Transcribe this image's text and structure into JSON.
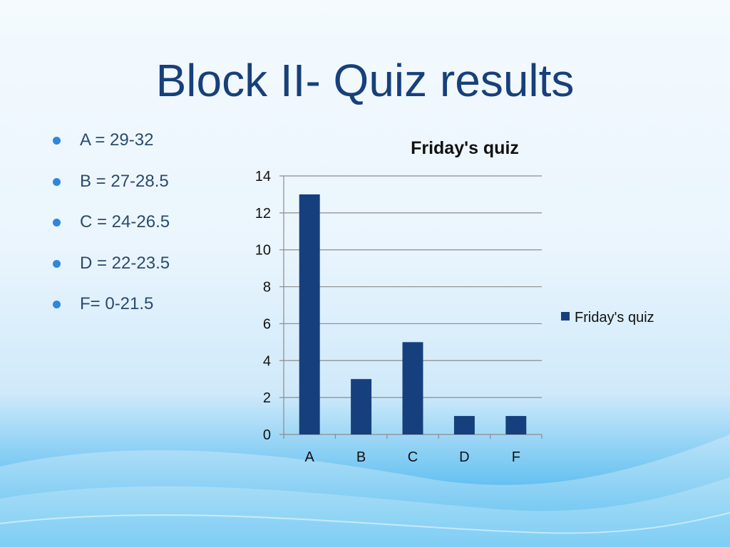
{
  "slide": {
    "title": "Block II- Quiz results"
  },
  "bullets": [
    "A = 29-32",
    "B = 27-28.5",
    "C = 24-26.5",
    "D = 22-23.5",
    "F= 0-21.5"
  ],
  "colors": {
    "title": "#17407a",
    "bar": "#163f7e",
    "bullet_dot": "#2f86de",
    "gridline": "#8c8c8c"
  },
  "chart_data": {
    "type": "bar",
    "title": "Friday's quiz",
    "categories": [
      "A",
      "B",
      "C",
      "D",
      "F"
    ],
    "series": [
      {
        "name": "Friday's quiz",
        "values": [
          13,
          3,
          5,
          1,
          1
        ]
      }
    ],
    "ylim": [
      0,
      14
    ],
    "yticks": [
      "0",
      "2",
      "4",
      "6",
      "8",
      "10",
      "12",
      "14"
    ],
    "grid": true,
    "legend": "right"
  }
}
